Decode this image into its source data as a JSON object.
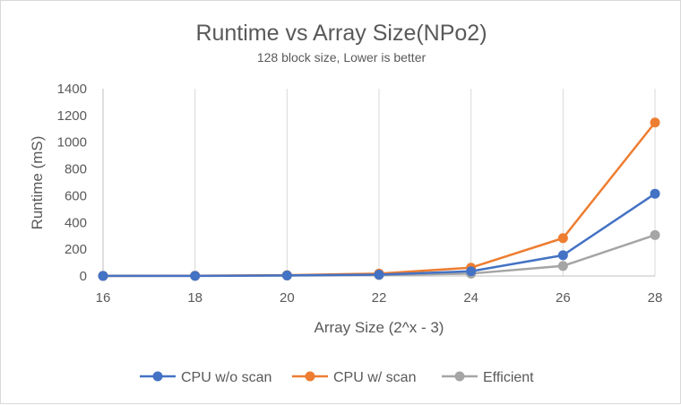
{
  "chart_data": {
    "type": "line",
    "title": "Runtime vs Array Size(NPo2)",
    "subtitle": "128 block size, Lower is better",
    "xlabel": "Array Size (2^x - 3)",
    "ylabel": "Runtime (mS)",
    "x": [
      16,
      18,
      20,
      22,
      24,
      26,
      28
    ],
    "xlim": [
      16,
      28
    ],
    "ylim": [
      0,
      1400
    ],
    "xticks": [
      "16",
      "18",
      "20",
      "22",
      "24",
      "26",
      "28"
    ],
    "yticks": [
      "0",
      "200",
      "400",
      "600",
      "800",
      "1000",
      "1200",
      "1400"
    ],
    "grid": "vertical",
    "legend_position": "bottom",
    "series": [
      {
        "name": "CPU w/o scan",
        "color": "#4472C4",
        "values": [
          0.5,
          1,
          4,
          10,
          35,
          155,
          615
        ]
      },
      {
        "name": "CPU w/ scan",
        "color": "#ED7D31",
        "values": [
          0.8,
          2,
          6,
          18,
          62,
          283,
          1147
        ]
      },
      {
        "name": "Efficient",
        "color": "#A5A5A5",
        "values": [
          0.4,
          1,
          3,
          7,
          18,
          75,
          306
        ]
      }
    ]
  }
}
